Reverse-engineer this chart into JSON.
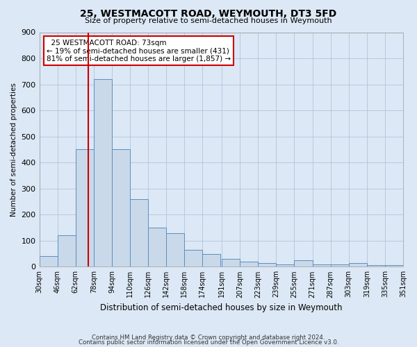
{
  "title": "25, WESTMACOTT ROAD, WEYMOUTH, DT3 5FD",
  "subtitle": "Size of property relative to semi-detached houses in Weymouth",
  "xlabel": "Distribution of semi-detached houses by size in Weymouth",
  "ylabel": "Number of semi-detached properties",
  "property_label": "25 WESTMACOTT ROAD: 73sqm",
  "smaller_pct": 19,
  "smaller_count": 431,
  "larger_pct": 81,
  "larger_count": 1857,
  "bin_edges": [
    30,
    46,
    62,
    78,
    94,
    110,
    126,
    142,
    158,
    174,
    191,
    207,
    223,
    239,
    255,
    271,
    287,
    303,
    319,
    335,
    351
  ],
  "bar_heights": [
    40,
    120,
    450,
    720,
    450,
    260,
    150,
    130,
    65,
    50,
    30,
    20,
    15,
    10,
    25,
    10,
    10,
    15,
    5,
    5
  ],
  "bar_color": "#c9d9ea",
  "bar_edge_color": "#5b8dc0",
  "vline_color": "#cc0000",
  "vline_x": 73,
  "ylim": [
    0,
    900
  ],
  "yticks": [
    0,
    100,
    200,
    300,
    400,
    500,
    600,
    700,
    800,
    900
  ],
  "grid_color": "#b0c4de",
  "background_color": "#dce8f5",
  "annotation_box_edge": "#cc0000",
  "footnote_line1": "Contains HM Land Registry data © Crown copyright and database right 2024.",
  "footnote_line2": "Contains public sector information licensed under the Open Government Licence v3.0."
}
